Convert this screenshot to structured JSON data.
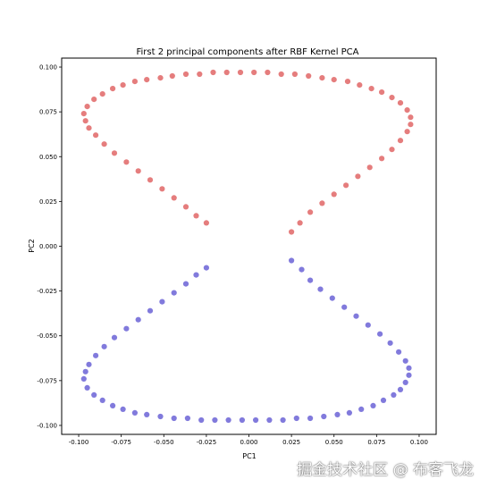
{
  "chart_data": {
    "type": "scatter",
    "title": "First 2 principal components after RBF Kernel PCA",
    "xlabel": "PC1",
    "ylabel": "PC2",
    "xlim": [
      -0.11,
      0.11
    ],
    "ylim": [
      -0.105,
      0.105
    ],
    "xticks": [
      "-0.100",
      "-0.075",
      "-0.050",
      "-0.025",
      "0.000",
      "0.025",
      "0.050",
      "0.075",
      "0.100"
    ],
    "yticks": [
      "-0.100",
      "-0.075",
      "-0.050",
      "-0.025",
      "0.000",
      "0.025",
      "0.050",
      "0.075",
      "0.100"
    ],
    "grid": false,
    "series": [
      {
        "color": "#e06666",
        "points": [
          [
            -0.025,
            0.013
          ],
          [
            -0.031,
            0.017
          ],
          [
            -0.037,
            0.022
          ],
          [
            -0.044,
            0.027
          ],
          [
            -0.051,
            0.032
          ],
          [
            -0.058,
            0.037
          ],
          [
            -0.065,
            0.042
          ],
          [
            -0.072,
            0.047
          ],
          [
            -0.079,
            0.052
          ],
          [
            -0.085,
            0.057
          ],
          [
            -0.09,
            0.062
          ],
          [
            -0.094,
            0.066
          ],
          [
            -0.096,
            0.07
          ],
          [
            -0.097,
            0.074
          ],
          [
            -0.095,
            0.078
          ],
          [
            -0.091,
            0.082
          ],
          [
            -0.086,
            0.085
          ],
          [
            -0.08,
            0.088
          ],
          [
            -0.074,
            0.09
          ],
          [
            -0.067,
            0.092
          ],
          [
            -0.06,
            0.093
          ],
          [
            -0.052,
            0.094
          ],
          [
            -0.045,
            0.095
          ],
          [
            -0.037,
            0.096
          ],
          [
            -0.029,
            0.096
          ],
          [
            -0.021,
            0.097
          ],
          [
            -0.013,
            0.097
          ],
          [
            -0.005,
            0.097
          ],
          [
            0.003,
            0.097
          ],
          [
            0.011,
            0.097
          ],
          [
            0.019,
            0.096
          ],
          [
            0.027,
            0.096
          ],
          [
            0.035,
            0.095
          ],
          [
            0.043,
            0.094
          ],
          [
            0.05,
            0.093
          ],
          [
            0.058,
            0.092
          ],
          [
            0.065,
            0.09
          ],
          [
            0.072,
            0.088
          ],
          [
            0.078,
            0.086
          ],
          [
            0.084,
            0.083
          ],
          [
            0.089,
            0.08
          ],
          [
            0.093,
            0.076
          ],
          [
            0.095,
            0.072
          ],
          [
            0.095,
            0.068
          ],
          [
            0.093,
            0.064
          ],
          [
            0.089,
            0.059
          ],
          [
            0.084,
            0.054
          ],
          [
            0.078,
            0.049
          ],
          [
            0.071,
            0.044
          ],
          [
            0.064,
            0.039
          ],
          [
            0.057,
            0.034
          ],
          [
            0.05,
            0.029
          ],
          [
            0.043,
            0.024
          ],
          [
            0.036,
            0.019
          ],
          [
            0.03,
            0.013
          ],
          [
            0.025,
            0.008
          ]
        ]
      },
      {
        "color": "#6b63d6",
        "points": [
          [
            -0.025,
            -0.012
          ],
          [
            -0.031,
            -0.016
          ],
          [
            -0.037,
            -0.021
          ],
          [
            -0.044,
            -0.026
          ],
          [
            -0.051,
            -0.031
          ],
          [
            -0.058,
            -0.036
          ],
          [
            -0.065,
            -0.041
          ],
          [
            -0.072,
            -0.046
          ],
          [
            -0.079,
            -0.051
          ],
          [
            -0.085,
            -0.056
          ],
          [
            -0.09,
            -0.061
          ],
          [
            -0.094,
            -0.066
          ],
          [
            -0.096,
            -0.07
          ],
          [
            -0.097,
            -0.074
          ],
          [
            -0.095,
            -0.079
          ],
          [
            -0.091,
            -0.083
          ],
          [
            -0.086,
            -0.086
          ],
          [
            -0.08,
            -0.089
          ],
          [
            -0.074,
            -0.091
          ],
          [
            -0.067,
            -0.093
          ],
          [
            -0.06,
            -0.094
          ],
          [
            -0.052,
            -0.095
          ],
          [
            -0.044,
            -0.096
          ],
          [
            -0.036,
            -0.096
          ],
          [
            -0.028,
            -0.097
          ],
          [
            -0.02,
            -0.097
          ],
          [
            -0.012,
            -0.097
          ],
          [
            -0.004,
            -0.097
          ],
          [
            0.004,
            -0.097
          ],
          [
            0.012,
            -0.097
          ],
          [
            0.02,
            -0.097
          ],
          [
            0.028,
            -0.096
          ],
          [
            0.036,
            -0.096
          ],
          [
            0.044,
            -0.095
          ],
          [
            0.052,
            -0.094
          ],
          [
            0.059,
            -0.093
          ],
          [
            0.066,
            -0.091
          ],
          [
            0.073,
            -0.089
          ],
          [
            0.079,
            -0.086
          ],
          [
            0.085,
            -0.083
          ],
          [
            0.089,
            -0.08
          ],
          [
            0.092,
            -0.076
          ],
          [
            0.094,
            -0.072
          ],
          [
            0.094,
            -0.068
          ],
          [
            0.092,
            -0.064
          ],
          [
            0.088,
            -0.059
          ],
          [
            0.083,
            -0.054
          ],
          [
            0.077,
            -0.049
          ],
          [
            0.07,
            -0.044
          ],
          [
            0.063,
            -0.039
          ],
          [
            0.056,
            -0.034
          ],
          [
            0.049,
            -0.029
          ],
          [
            0.042,
            -0.024
          ],
          [
            0.036,
            -0.019
          ],
          [
            0.031,
            -0.013
          ],
          [
            0.025,
            -0.008
          ]
        ]
      }
    ]
  },
  "watermark": "掘金技术社区 @ 布客飞龙"
}
